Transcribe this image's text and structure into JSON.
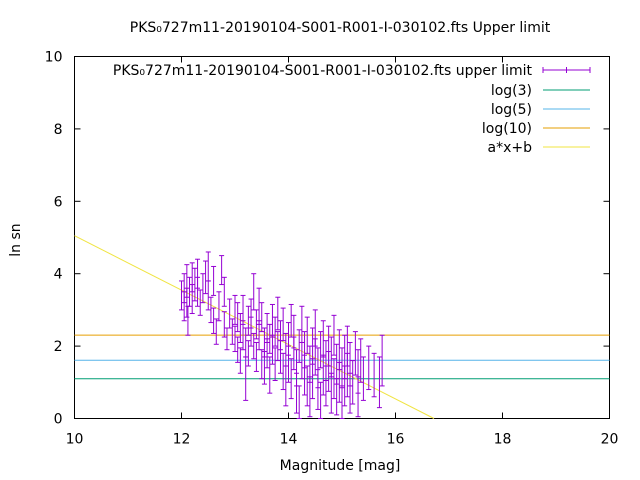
{
  "chart_data": {
    "type": "scatter",
    "title": "PKS₀727m11-20190104-S001-R001-I-030102.fts Upper limit",
    "xlabel": "Magnitude [mag]",
    "ylabel": "ln sn",
    "xlim": [
      10,
      20
    ],
    "ylim": [
      0,
      10
    ],
    "xticks": [
      "10",
      "12",
      "14",
      "16",
      "18",
      "20"
    ],
    "yticks": [
      "0",
      "2",
      "4",
      "6",
      "8",
      "10"
    ],
    "grid": false,
    "legend_position": "top-right",
    "series": [
      {
        "name": "PKS₀727m11-20190104-S001-R001-I-030102.fts upper limit",
        "kind": "points-errorbars",
        "color": "#9400d3",
        "points": [
          [
            12.0,
            3.4,
            0.4
          ],
          [
            12.05,
            3.1,
            0.4
          ],
          [
            12.05,
            3.6,
            0.4
          ],
          [
            12.1,
            3.8,
            0.45
          ],
          [
            12.1,
            3.2,
            0.4
          ],
          [
            12.12,
            2.7,
            0.4
          ],
          [
            12.15,
            3.5,
            0.4
          ],
          [
            12.2,
            3.9,
            0.4
          ],
          [
            12.2,
            3.3,
            0.4
          ],
          [
            12.25,
            3.7,
            0.45
          ],
          [
            12.3,
            4.0,
            0.4
          ],
          [
            12.3,
            3.5,
            0.4
          ],
          [
            12.35,
            3.2,
            0.35
          ],
          [
            12.4,
            3.6,
            0.4
          ],
          [
            12.45,
            3.9,
            0.45
          ],
          [
            12.5,
            4.2,
            0.4
          ],
          [
            12.5,
            3.4,
            0.4
          ],
          [
            12.55,
            3.0,
            0.35
          ],
          [
            12.6,
            2.7,
            0.35
          ],
          [
            12.6,
            3.8,
            0.4
          ],
          [
            12.65,
            2.4,
            0.35
          ],
          [
            12.7,
            3.1,
            0.4
          ],
          [
            12.75,
            4.1,
            0.4
          ],
          [
            12.8,
            3.5,
            0.4
          ],
          [
            12.8,
            2.6,
            0.35
          ],
          [
            12.85,
            2.2,
            0.3
          ],
          [
            12.9,
            2.9,
            0.4
          ],
          [
            12.95,
            2.4,
            0.35
          ],
          [
            13.0,
            3.0,
            0.4
          ],
          [
            13.0,
            2.2,
            0.35
          ],
          [
            13.05,
            2.8,
            0.4
          ],
          [
            13.05,
            1.9,
            0.35
          ],
          [
            13.1,
            2.5,
            0.4
          ],
          [
            13.1,
            1.6,
            0.35
          ],
          [
            13.15,
            2.3,
            0.4
          ],
          [
            13.15,
            3.0,
            0.4
          ],
          [
            13.2,
            1.1,
            0.6
          ],
          [
            13.2,
            2.1,
            0.4
          ],
          [
            13.25,
            2.7,
            0.4
          ],
          [
            13.25,
            1.8,
            0.35
          ],
          [
            13.3,
            2.4,
            0.4
          ],
          [
            13.3,
            2.9,
            0.4
          ],
          [
            13.35,
            3.5,
            0.5
          ],
          [
            13.35,
            2.0,
            0.35
          ],
          [
            13.4,
            1.7,
            0.4
          ],
          [
            13.4,
            2.6,
            0.4
          ],
          [
            13.45,
            2.3,
            0.4
          ],
          [
            13.45,
            3.1,
            0.5
          ],
          [
            13.5,
            1.5,
            0.4
          ],
          [
            13.5,
            2.8,
            0.4
          ],
          [
            13.55,
            2.1,
            0.4
          ],
          [
            13.55,
            1.4,
            0.45
          ],
          [
            13.6,
            2.5,
            0.4
          ],
          [
            13.6,
            1.8,
            0.4
          ],
          [
            13.65,
            2.2,
            0.4
          ],
          [
            13.65,
            1.2,
            0.5
          ],
          [
            13.7,
            2.7,
            0.45
          ],
          [
            13.7,
            1.9,
            0.4
          ],
          [
            13.75,
            2.4,
            0.4
          ],
          [
            13.75,
            1.5,
            0.45
          ],
          [
            13.8,
            2.0,
            0.4
          ],
          [
            13.8,
            2.9,
            0.45
          ],
          [
            13.85,
            1.7,
            0.45
          ],
          [
            13.85,
            2.3,
            0.4
          ],
          [
            13.9,
            1.3,
            0.5
          ],
          [
            13.9,
            2.6,
            0.45
          ],
          [
            13.95,
            1.9,
            0.45
          ],
          [
            13.95,
            0.9,
            0.55
          ],
          [
            14.0,
            2.2,
            0.45
          ],
          [
            14.0,
            1.5,
            0.5
          ],
          [
            14.05,
            2.7,
            0.45
          ],
          [
            14.05,
            1.1,
            0.55
          ],
          [
            14.1,
            1.8,
            0.45
          ],
          [
            14.1,
            2.4,
            0.45
          ],
          [
            14.15,
            0.7,
            0.55
          ],
          [
            14.15,
            1.4,
            0.5
          ],
          [
            14.2,
            2.0,
            0.45
          ],
          [
            14.2,
            0.4,
            0.5
          ],
          [
            14.25,
            1.6,
            0.5
          ],
          [
            14.25,
            2.6,
            0.5
          ],
          [
            14.3,
            1.2,
            0.55
          ],
          [
            14.3,
            1.9,
            0.5
          ],
          [
            14.35,
            0.9,
            0.55
          ],
          [
            14.35,
            2.3,
            0.5
          ],
          [
            14.4,
            1.5,
            0.5
          ],
          [
            14.4,
            0.6,
            0.55
          ],
          [
            14.45,
            2.0,
            0.5
          ],
          [
            14.45,
            1.1,
            0.55
          ],
          [
            14.5,
            1.7,
            0.5
          ],
          [
            14.5,
            2.5,
            0.5
          ],
          [
            14.55,
            0.8,
            0.55
          ],
          [
            14.55,
            1.4,
            0.55
          ],
          [
            14.6,
            1.9,
            0.5
          ],
          [
            14.6,
            0.5,
            0.5
          ],
          [
            14.65,
            1.2,
            0.55
          ],
          [
            14.65,
            2.2,
            0.5
          ],
          [
            14.7,
            1.6,
            0.55
          ],
          [
            14.7,
            0.9,
            0.55
          ],
          [
            14.75,
            1.3,
            0.55
          ],
          [
            14.75,
            2.0,
            0.55
          ],
          [
            14.8,
            0.7,
            0.55
          ],
          [
            14.8,
            1.7,
            0.55
          ],
          [
            14.85,
            1.1,
            0.55
          ],
          [
            14.85,
            2.3,
            0.55
          ],
          [
            14.9,
            1.5,
            0.55
          ],
          [
            14.9,
            0.6,
            0.5
          ],
          [
            14.95,
            1.9,
            0.55
          ],
          [
            14.95,
            1.0,
            0.55
          ],
          [
            15.0,
            1.4,
            0.55
          ],
          [
            15.0,
            0.4,
            0.5
          ],
          [
            15.05,
            1.7,
            0.6
          ],
          [
            15.05,
            0.9,
            0.55
          ],
          [
            15.1,
            1.2,
            0.6
          ],
          [
            15.1,
            2.0,
            0.55
          ],
          [
            15.15,
            0.7,
            0.55
          ],
          [
            15.15,
            1.5,
            0.6
          ],
          [
            15.2,
            1.0,
            0.6
          ],
          [
            15.25,
            1.8,
            0.6
          ],
          [
            15.3,
            1.3,
            0.6
          ],
          [
            15.3,
            0.6,
            0.55
          ],
          [
            15.35,
            1.6,
            0.6
          ],
          [
            15.4,
            1.1,
            0.6
          ],
          [
            15.5,
            1.4,
            0.6
          ],
          [
            15.6,
            1.2,
            0.6
          ],
          [
            15.7,
            1.0,
            0.7
          ],
          [
            15.75,
            1.6,
            0.7
          ]
        ]
      },
      {
        "name": "log(3)",
        "kind": "hline",
        "color": "#009e73",
        "value": 1.0986
      },
      {
        "name": "log(5)",
        "kind": "hline",
        "color": "#56b4e9",
        "value": 1.6094
      },
      {
        "name": "log(10)",
        "kind": "hline",
        "color": "#e69f00",
        "value": 2.3026
      },
      {
        "name": "a*x+b",
        "kind": "fitline",
        "color": "#f0e442",
        "x": [
          10.0,
          16.72
        ],
        "y": [
          5.05,
          0.0
        ]
      }
    ]
  }
}
